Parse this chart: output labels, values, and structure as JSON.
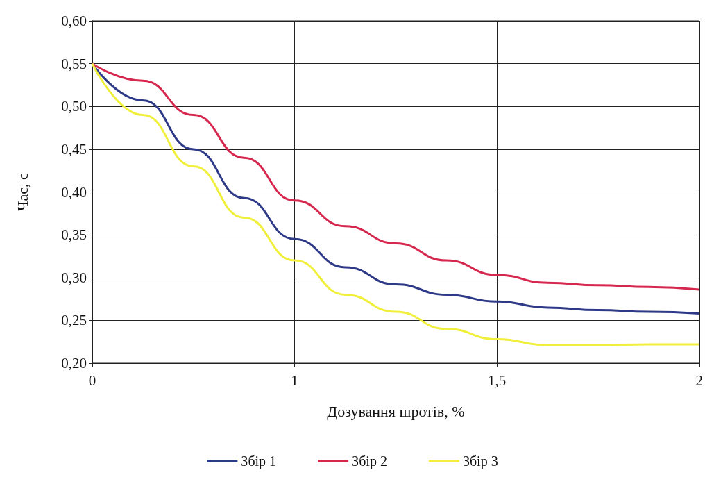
{
  "chart_data": {
    "type": "line",
    "xlabel": "Дозування шротів, %",
    "ylabel": "Час, с",
    "categories": [
      "0",
      null,
      null,
      null,
      "1",
      null,
      null,
      null,
      "1,5",
      null,
      null,
      null,
      "2"
    ],
    "series": [
      {
        "name": "Збір 1",
        "color": "#2e3a87",
        "values": [
          0.55,
          0.507,
          0.45,
          0.393,
          0.345,
          0.312,
          0.292,
          0.28,
          0.272,
          0.265,
          0.262,
          0.26,
          0.258
        ]
      },
      {
        "name": "Збір 2",
        "color": "#d6284f",
        "values": [
          0.55,
          0.53,
          0.49,
          0.44,
          0.39,
          0.36,
          0.34,
          0.32,
          0.303,
          0.294,
          0.291,
          0.289,
          0.286
        ]
      },
      {
        "name": "Збір 3",
        "color": "#f0f03c",
        "values": [
          0.55,
          0.49,
          0.43,
          0.37,
          0.32,
          0.28,
          0.26,
          0.24,
          0.228,
          0.221,
          0.221,
          0.222,
          0.222
        ]
      }
    ],
    "ylim": [
      0.2,
      0.6
    ],
    "yticks": [
      {
        "value": 0.2,
        "label": "0,20"
      },
      {
        "value": 0.25,
        "label": "0,25"
      },
      {
        "value": 0.3,
        "label": "0,30"
      },
      {
        "value": 0.35,
        "label": "0,35"
      },
      {
        "value": 0.4,
        "label": "0,40"
      },
      {
        "value": 0.45,
        "label": "0,45"
      },
      {
        "value": 0.5,
        "label": "0,50"
      },
      {
        "value": 0.55,
        "label": "0,55"
      },
      {
        "value": 0.6,
        "label": "0,60"
      }
    ],
    "grid": true,
    "legend": "bottom",
    "marker": "none",
    "line_style": "solid"
  }
}
